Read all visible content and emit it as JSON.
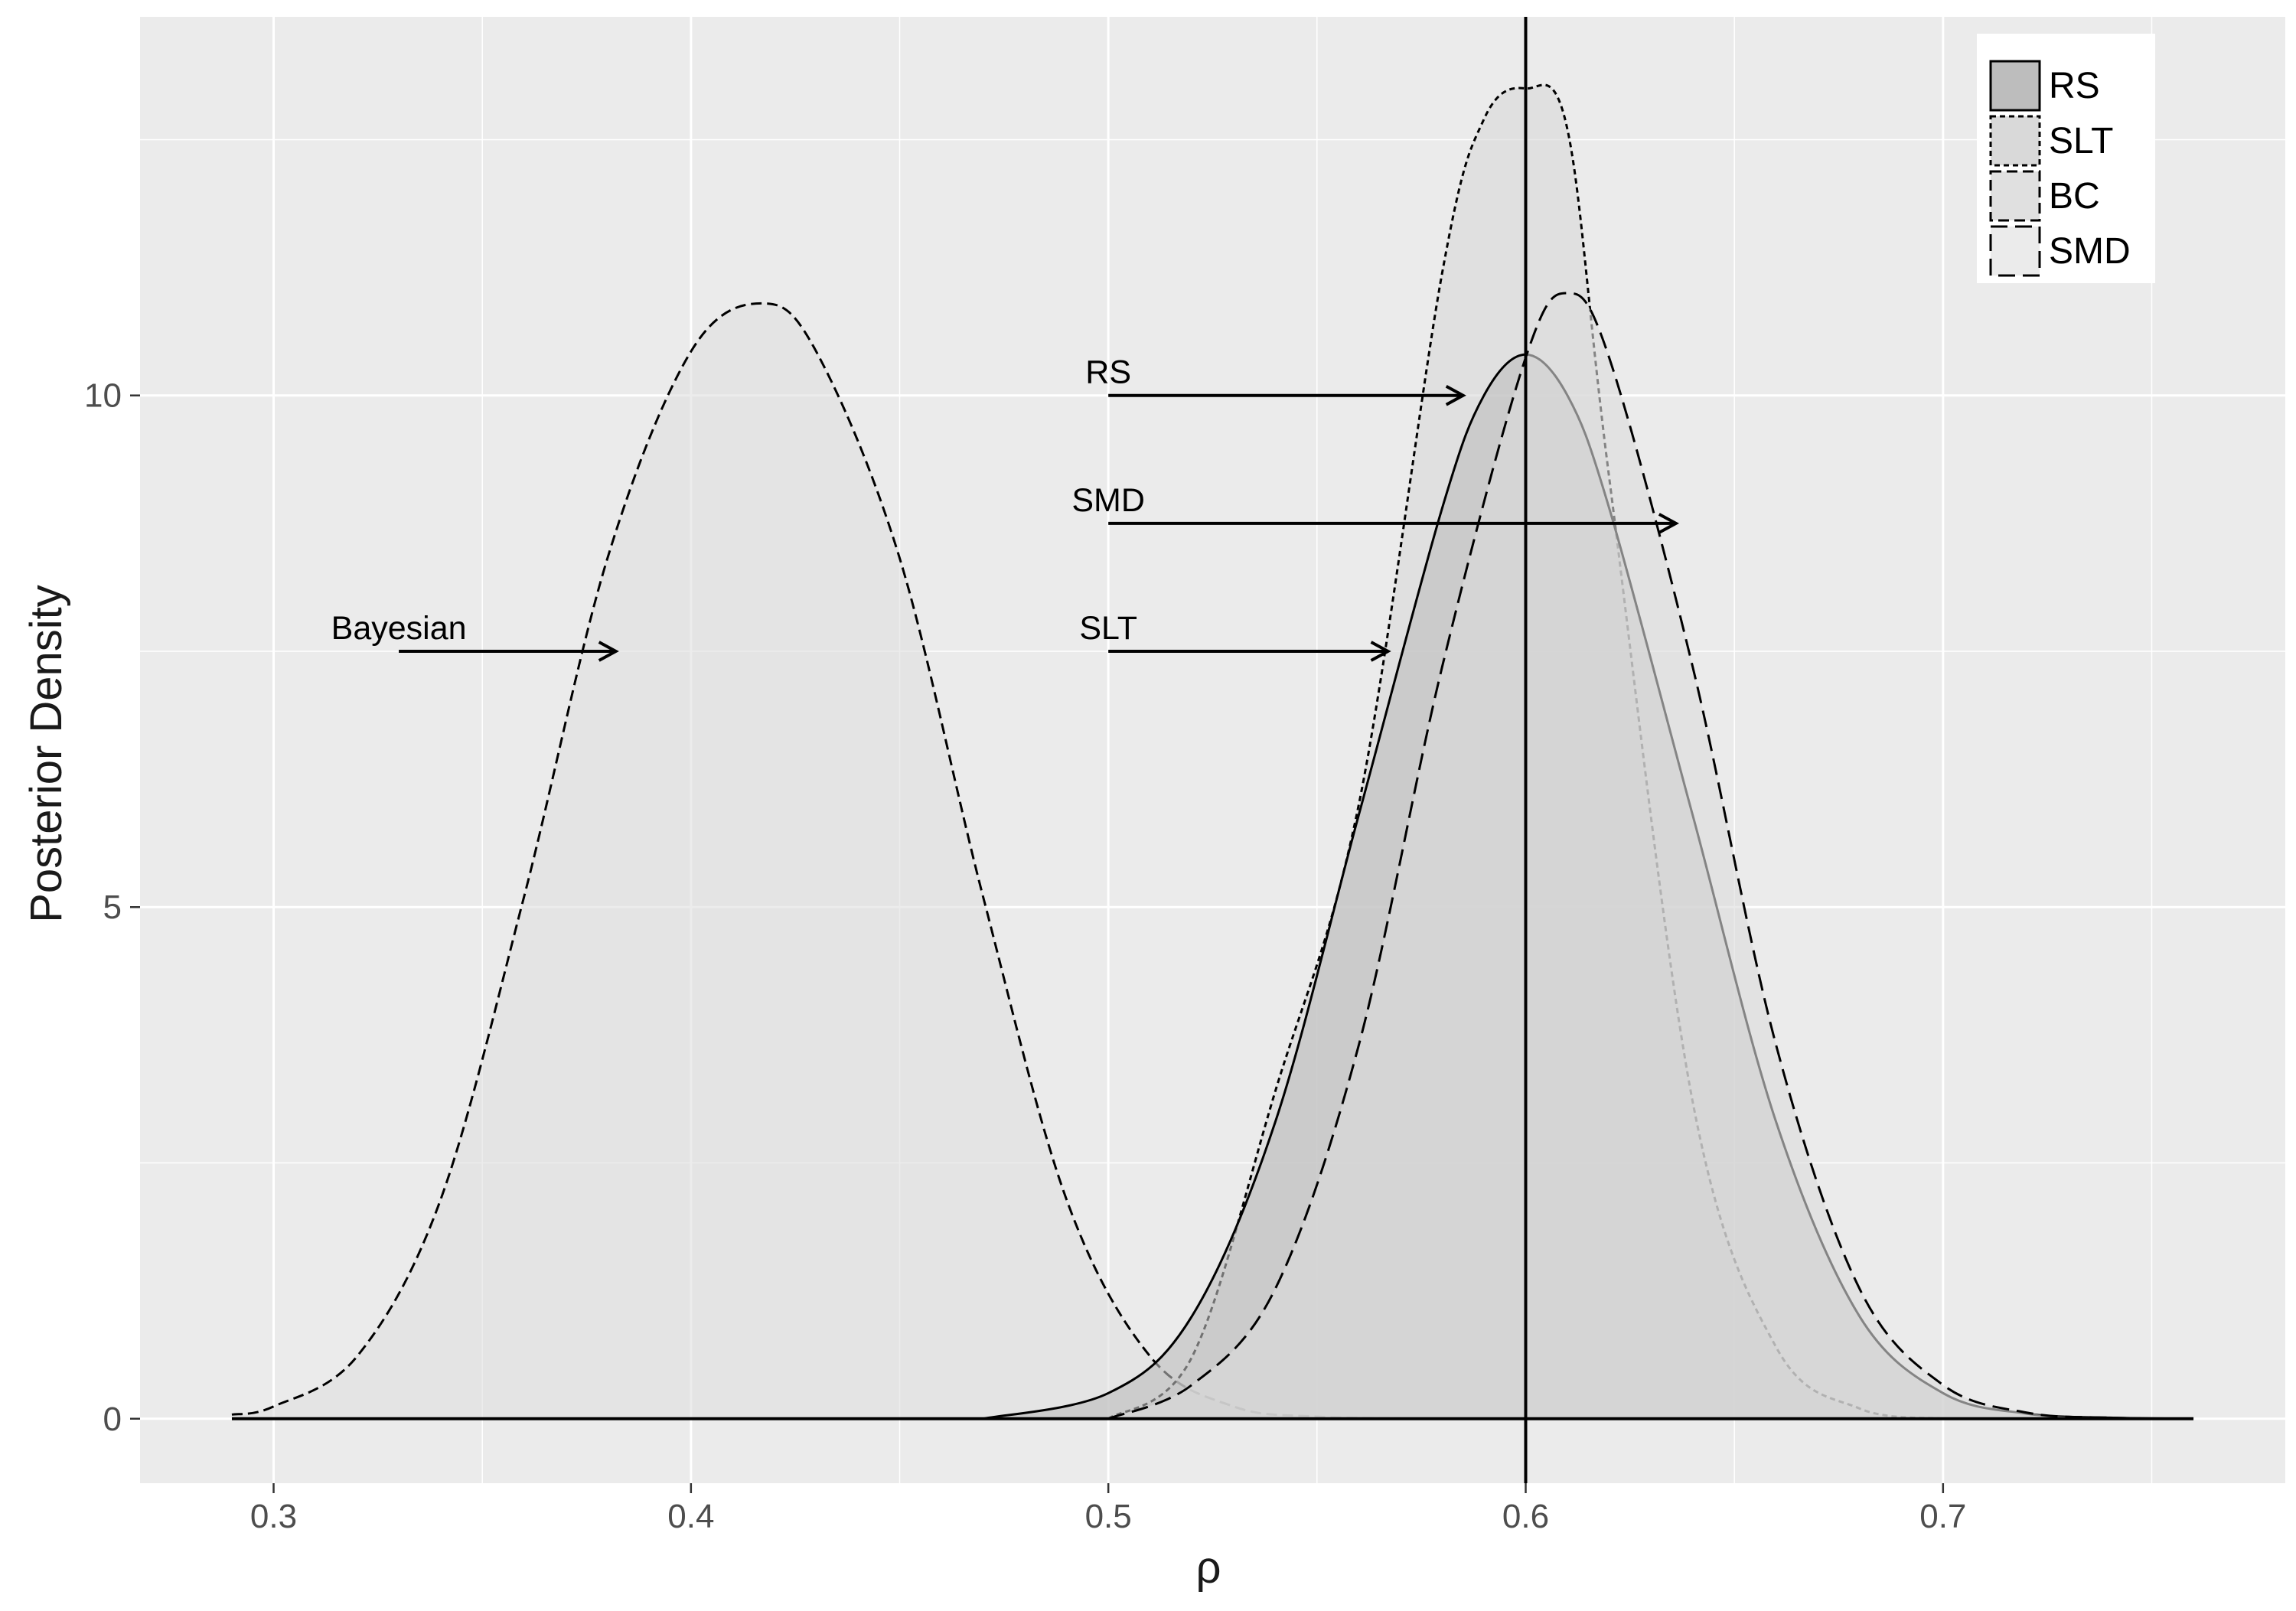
{
  "chart_data": {
    "type": "area",
    "title": "",
    "xlabel": "ρ",
    "ylabel": "Posterior Density",
    "xlim": [
      0.268,
      0.782
    ],
    "ylim": [
      -0.63,
      13.7
    ],
    "xticks": [
      0.3,
      0.4,
      0.5,
      0.6,
      0.7
    ],
    "xtick_labels": [
      "0.3",
      "0.4",
      "0.5",
      "0.6",
      "0.7"
    ],
    "yticks": [
      0,
      5,
      10
    ],
    "ytick_labels": [
      "0",
      "5",
      "10"
    ],
    "grid": true,
    "legend_position": "top-right",
    "x_range": [
      0.29,
      0.76
    ],
    "vline_x": 0.6,
    "series": [
      {
        "name": "BC",
        "fill": "#e0e0e0",
        "dash": "dashed-medium",
        "x": [
          0.29,
          0.3,
          0.32,
          0.34,
          0.36,
          0.38,
          0.4,
          0.417,
          0.43,
          0.45,
          0.47,
          0.49,
          0.51,
          0.53,
          0.55,
          0.58
        ],
        "y": [
          0.04,
          0.12,
          0.61,
          2.14,
          5.1,
          8.41,
          10.43,
          10.9,
          10.43,
          8.41,
          5.1,
          2.14,
          0.61,
          0.12,
          0.02,
          0.0
        ]
      },
      {
        "name": "SLT",
        "fill": "#d9d9d9",
        "dash": "dashed-short",
        "x": [
          0.5,
          0.52,
          0.54,
          0.56,
          0.58,
          0.59,
          0.6,
          0.61,
          0.62,
          0.64,
          0.66,
          0.68,
          0.7
        ],
        "y": [
          0.0,
          0.6,
          3.2,
          6.0,
          11.2,
          12.7,
          13.0,
          12.6,
          9.2,
          3.1,
          0.7,
          0.1,
          0.0
        ]
      },
      {
        "name": "RS",
        "fill": "#bdbdbd",
        "dash": "solid",
        "x": [
          0.47,
          0.5,
          0.52,
          0.54,
          0.56,
          0.58,
          0.59,
          0.6,
          0.61,
          0.62,
          0.64,
          0.66,
          0.68,
          0.7,
          0.72,
          0.74,
          0.76
        ],
        "y": [
          0.0,
          0.25,
          1.0,
          2.9,
          5.9,
          8.9,
          10.0,
          10.4,
          10.0,
          8.9,
          5.9,
          2.9,
          1.0,
          0.25,
          0.05,
          0.01,
          0.0
        ]
      },
      {
        "name": "SMD",
        "fill": "#dcdcdc",
        "dash": "dashed-long",
        "x": [
          0.5,
          0.52,
          0.54,
          0.56,
          0.58,
          0.6,
          0.61,
          0.62,
          0.64,
          0.66,
          0.68,
          0.7,
          0.72,
          0.74,
          0.76
        ],
        "y": [
          0.0,
          0.33,
          1.27,
          3.65,
          7.35,
          10.37,
          11.0,
          10.37,
          7.35,
          3.65,
          1.27,
          0.33,
          0.06,
          0.01,
          0.0
        ]
      }
    ],
    "annotations": [
      {
        "text": "RS",
        "x_start": 0.5,
        "x_end": 0.585,
        "y": 10.0
      },
      {
        "text": "SMD",
        "x_start": 0.5,
        "x_end": 0.636,
        "y": 8.75
      },
      {
        "text": "SLT",
        "x_start": 0.5,
        "x_end": 0.567,
        "y": 7.5
      },
      {
        "text": "Bayesian",
        "x_start": 0.33,
        "x_end": 0.382,
        "y": 7.5
      }
    ],
    "legend": {
      "entries": [
        {
          "name": "RS",
          "fill": "#bdbdbd",
          "dash": "solid"
        },
        {
          "name": "SLT",
          "fill": "#d9d9d9",
          "dash": "dashed-short"
        },
        {
          "name": "BC",
          "fill": "#e0e0e0",
          "dash": "dashed-medium"
        },
        {
          "name": "SMD",
          "fill": "#ebebeb",
          "dash": "dashed-long"
        }
      ]
    },
    "colors": {
      "panel": "#ebebeb",
      "grid": "#ffffff",
      "text": "#1a1a1a",
      "tick_text": "#4d4d4d",
      "line": "#000000"
    }
  }
}
